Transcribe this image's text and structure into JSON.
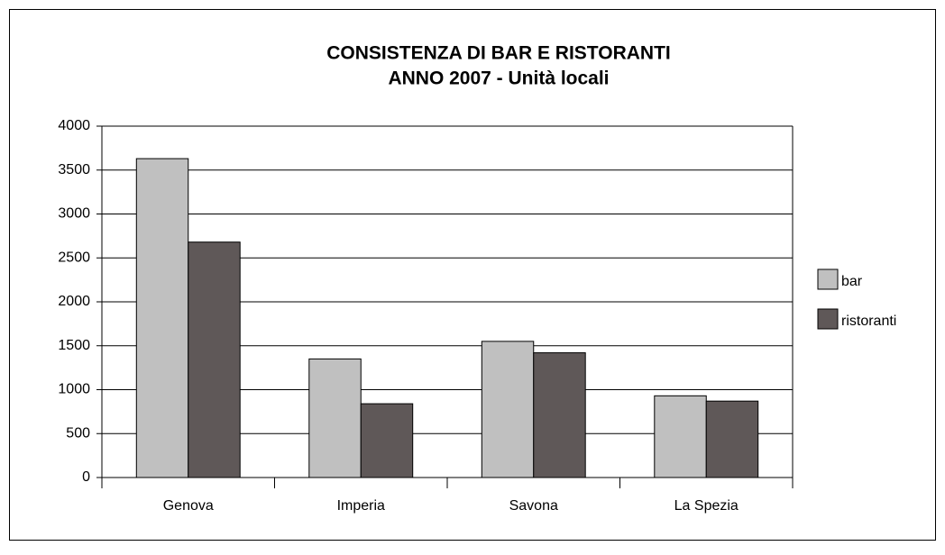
{
  "chart_data": {
    "type": "bar",
    "title": "CONSISTENZA DI BAR E RISTORANTI",
    "subtitle": "ANNO 2007 - Unità locali",
    "categories": [
      "Genova",
      "Imperia",
      "Savona",
      "La Spezia"
    ],
    "series": [
      {
        "name": "bar",
        "color": "#c0c0c0",
        "values": [
          3630,
          1350,
          1550,
          930
        ]
      },
      {
        "name": "ristoranti",
        "color": "#5f5858",
        "values": [
          2680,
          840,
          1420,
          870
        ]
      }
    ],
    "ylim": [
      0,
      4000
    ],
    "yticks": [
      0,
      500,
      1000,
      1500,
      2000,
      2500,
      3000,
      3500,
      4000
    ],
    "grid": true,
    "legend": "right"
  }
}
